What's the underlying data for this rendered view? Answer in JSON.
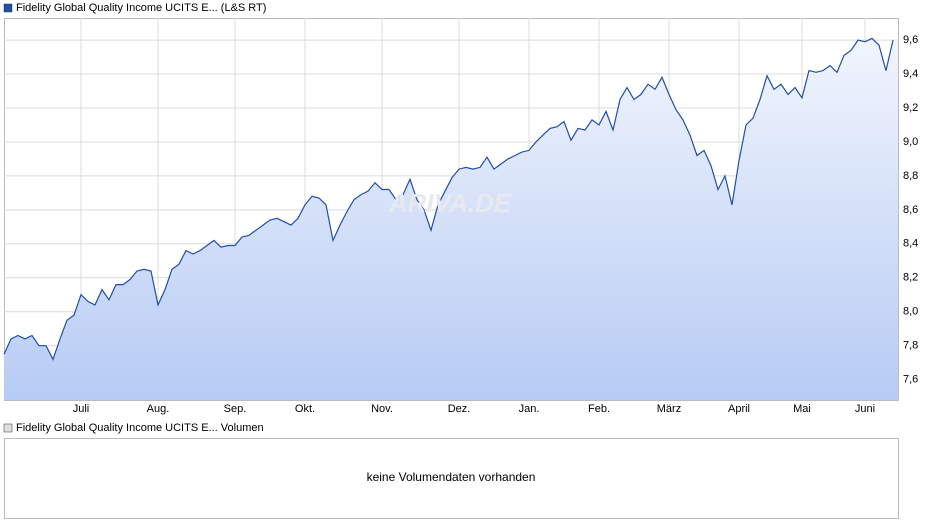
{
  "chart_data": {
    "type": "line",
    "watermark": "ARIVA.DE",
    "series": [
      {
        "name": "Fidelity Global Quality Income UCITS E... (L&S RT)",
        "color": "#1f4fa8",
        "values": [
          7.75,
          7.84,
          7.86,
          7.84,
          7.86,
          7.8,
          7.8,
          7.72,
          7.84,
          7.95,
          7.98,
          8.1,
          8.06,
          8.04,
          8.13,
          8.07,
          8.16,
          8.16,
          8.19,
          8.24,
          8.25,
          8.24,
          8.04,
          8.13,
          8.25,
          8.28,
          8.36,
          8.34,
          8.36,
          8.39,
          8.42,
          8.38,
          8.39,
          8.39,
          8.44,
          8.45,
          8.48,
          8.51,
          8.54,
          8.55,
          8.53,
          8.51,
          8.55,
          8.63,
          8.68,
          8.67,
          8.63,
          8.42,
          8.51,
          8.59,
          8.66,
          8.69,
          8.71,
          8.76,
          8.72,
          8.72,
          8.66,
          8.69,
          8.78,
          8.66,
          8.6,
          8.48,
          8.63,
          8.71,
          8.79,
          8.84,
          8.85,
          8.84,
          8.85,
          8.91,
          8.84,
          8.87,
          8.9,
          8.92,
          8.94,
          8.95,
          9.0,
          9.04,
          9.08,
          9.09,
          9.12,
          9.01,
          9.08,
          9.07,
          9.13,
          9.1,
          9.18,
          9.07,
          9.25,
          9.32,
          9.25,
          9.28,
          9.34,
          9.31,
          9.38,
          9.28,
          9.19,
          9.13,
          9.04,
          8.92,
          8.95,
          8.86,
          8.72,
          8.8,
          8.63,
          8.89,
          9.1,
          9.14,
          9.25,
          9.39,
          9.31,
          9.34,
          9.28,
          9.32,
          9.26,
          9.42,
          9.41,
          9.42,
          9.45,
          9.41,
          9.51,
          9.54,
          9.6,
          9.59,
          9.61,
          9.57,
          9.42,
          9.6
        ]
      }
    ],
    "categories": [
      null,
      null,
      null,
      null,
      null,
      null,
      null,
      null,
      null,
      null,
      null,
      "Juli",
      null,
      null,
      null,
      null,
      null,
      null,
      null,
      null,
      null,
      null,
      "Aug.",
      null,
      null,
      null,
      null,
      null,
      null,
      null,
      null,
      null,
      null,
      "Sep.",
      null,
      null,
      null,
      null,
      null,
      null,
      null,
      null,
      null,
      "Okt.",
      null,
      null,
      null,
      null,
      null,
      null,
      null,
      null,
      null,
      null,
      "Nov.",
      null,
      null,
      null,
      null,
      null,
      null,
      null,
      null,
      null,
      null,
      "Dez.",
      null,
      null,
      null,
      null,
      null,
      null,
      null,
      null,
      null,
      "Jan.",
      null,
      null,
      null,
      null,
      null,
      null,
      null,
      null,
      null,
      "Feb.",
      null,
      null,
      null,
      null,
      null,
      null,
      null,
      null,
      null,
      "März",
      null,
      null,
      null,
      null,
      null,
      null,
      null,
      null,
      null,
      "April",
      null,
      null,
      null,
      null,
      null,
      null,
      null,
      null,
      "Mai",
      null,
      null,
      null,
      null,
      null,
      null,
      null,
      null,
      "Juni",
      null,
      null,
      null,
      null
    ],
    "ylim": [
      7.48,
      9.73
    ],
    "yticks": [
      {
        "value": 7.6,
        "label": "7,6"
      },
      {
        "value": 7.8,
        "label": "7,8"
      },
      {
        "value": 8.0,
        "label": "8,0"
      },
      {
        "value": 8.2,
        "label": "8,2"
      },
      {
        "value": 8.4,
        "label": "8,4"
      },
      {
        "value": 8.6,
        "label": "8,6"
      },
      {
        "value": 8.8,
        "label": "8,8"
      },
      {
        "value": 9.0,
        "label": "9,0"
      },
      {
        "value": 9.2,
        "label": "9,2"
      },
      {
        "value": 9.4,
        "label": "9,4"
      },
      {
        "value": 9.6,
        "label": "9,6"
      }
    ],
    "grid": true
  },
  "volume_panel": {
    "legend": "Fidelity Global Quality Income UCITS E... Volumen",
    "message": "keine Volumendaten vorhanden"
  }
}
